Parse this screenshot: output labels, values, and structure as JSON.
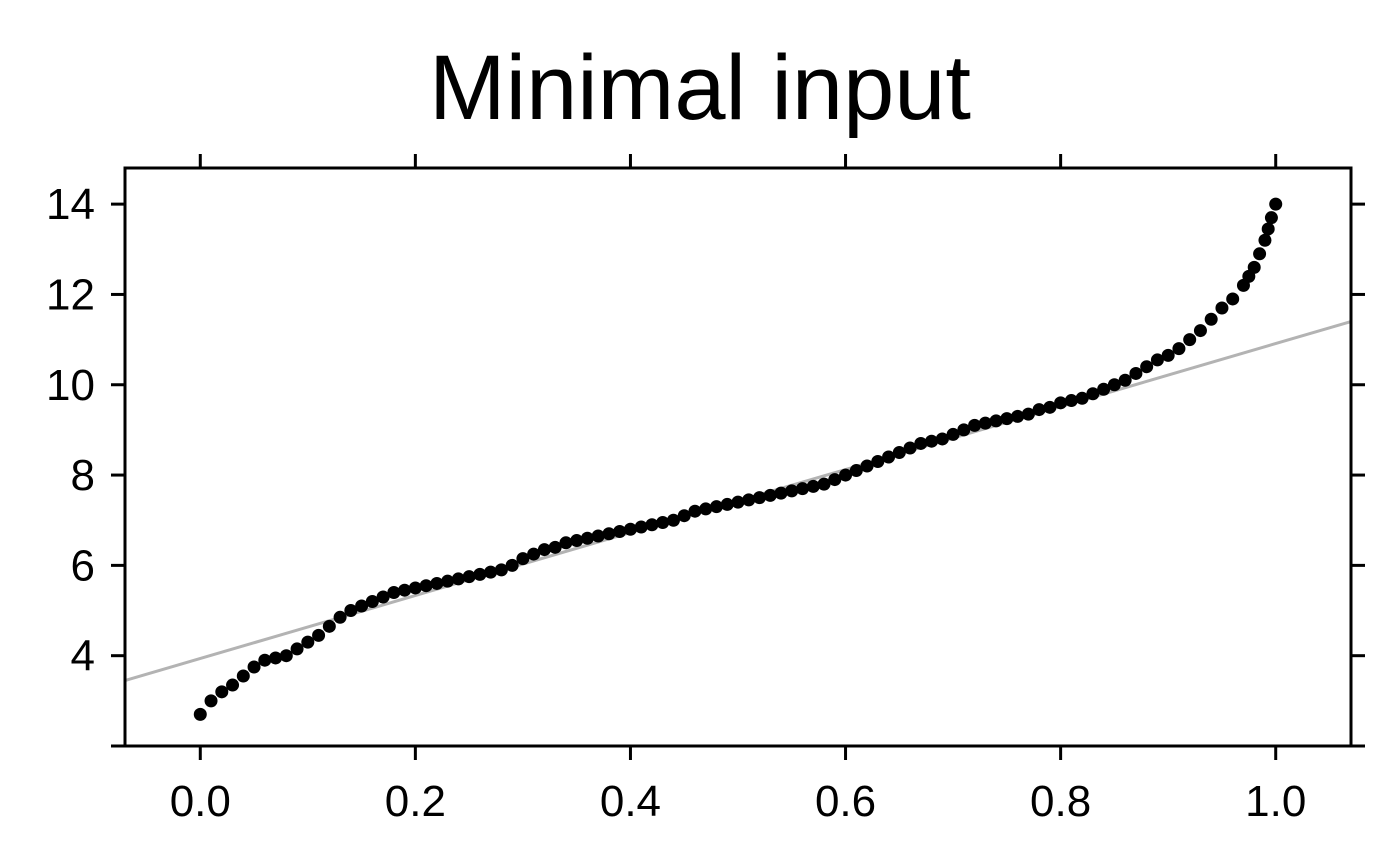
{
  "chart_data": {
    "type": "scatter",
    "title": "Minimal input",
    "xlabel": "",
    "ylabel": "",
    "xlim": [
      -0.07,
      1.07
    ],
    "ylim": [
      2.0,
      14.8
    ],
    "x_ticks": [
      0.0,
      0.2,
      0.4,
      0.6,
      0.8,
      1.0
    ],
    "x_tick_labels": [
      "0.0",
      "0.2",
      "0.4",
      "0.6",
      "0.8",
      "1.0"
    ],
    "y_ticks": [
      2,
      4,
      6,
      8,
      10,
      12,
      14
    ],
    "y_tick_labels": [
      "",
      "4",
      "6",
      "8",
      "10",
      "12",
      "14"
    ],
    "grid": false,
    "series": [
      {
        "kind": "points",
        "color": "#000000",
        "x": [
          0.0,
          0.01,
          0.02,
          0.03,
          0.04,
          0.05,
          0.06,
          0.07,
          0.08,
          0.09,
          0.1,
          0.11,
          0.12,
          0.13,
          0.14,
          0.15,
          0.16,
          0.17,
          0.18,
          0.19,
          0.2,
          0.21,
          0.22,
          0.23,
          0.24,
          0.25,
          0.26,
          0.27,
          0.28,
          0.29,
          0.3,
          0.31,
          0.32,
          0.33,
          0.34,
          0.35,
          0.36,
          0.37,
          0.38,
          0.39,
          0.4,
          0.41,
          0.42,
          0.43,
          0.44,
          0.45,
          0.46,
          0.47,
          0.48,
          0.49,
          0.5,
          0.51,
          0.52,
          0.53,
          0.54,
          0.55,
          0.56,
          0.57,
          0.58,
          0.59,
          0.6,
          0.61,
          0.62,
          0.63,
          0.64,
          0.65,
          0.66,
          0.67,
          0.68,
          0.69,
          0.7,
          0.71,
          0.72,
          0.73,
          0.74,
          0.75,
          0.76,
          0.77,
          0.78,
          0.79,
          0.8,
          0.81,
          0.82,
          0.83,
          0.84,
          0.85,
          0.86,
          0.87,
          0.88,
          0.89,
          0.9,
          0.91,
          0.92,
          0.93,
          0.94,
          0.95,
          0.96,
          0.97,
          0.975,
          0.98,
          0.985,
          0.99,
          0.993,
          0.996,
          1.0
        ],
        "y": [
          2.7,
          3.0,
          3.2,
          3.35,
          3.55,
          3.75,
          3.9,
          3.95,
          4.0,
          4.15,
          4.3,
          4.45,
          4.65,
          4.85,
          5.0,
          5.1,
          5.2,
          5.3,
          5.4,
          5.45,
          5.5,
          5.55,
          5.6,
          5.65,
          5.7,
          5.75,
          5.8,
          5.85,
          5.9,
          6.0,
          6.15,
          6.25,
          6.35,
          6.4,
          6.5,
          6.55,
          6.6,
          6.65,
          6.7,
          6.75,
          6.8,
          6.85,
          6.9,
          6.95,
          7.0,
          7.1,
          7.2,
          7.25,
          7.3,
          7.35,
          7.4,
          7.45,
          7.5,
          7.55,
          7.6,
          7.65,
          7.7,
          7.75,
          7.8,
          7.9,
          8.0,
          8.1,
          8.2,
          8.3,
          8.4,
          8.5,
          8.6,
          8.7,
          8.75,
          8.8,
          8.9,
          9.0,
          9.1,
          9.15,
          9.2,
          9.25,
          9.3,
          9.35,
          9.45,
          9.5,
          9.6,
          9.65,
          9.7,
          9.8,
          9.9,
          10.0,
          10.1,
          10.25,
          10.4,
          10.55,
          10.65,
          10.8,
          11.0,
          11.2,
          11.45,
          11.7,
          11.9,
          12.2,
          12.4,
          12.6,
          12.9,
          13.2,
          13.45,
          13.7,
          14.0
        ]
      },
      {
        "kind": "reference-line",
        "color": "#b3b3b3",
        "x": [
          -0.07,
          1.07
        ],
        "y": [
          3.45,
          11.4
        ]
      }
    ]
  }
}
